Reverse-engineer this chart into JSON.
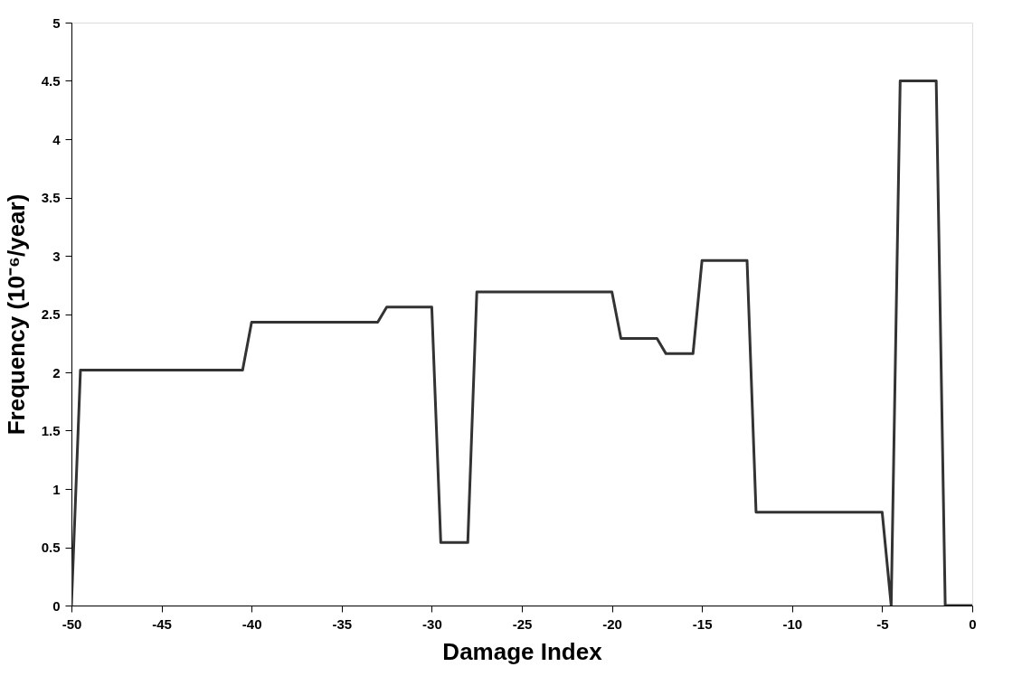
{
  "chart_data": {
    "type": "line",
    "xlabel": "Damage Index",
    "ylabel": "Frequency (10⁻⁶/year)",
    "x": [
      -50,
      -49.5,
      -40.5,
      -40,
      -33,
      -32.5,
      -30,
      -29.5,
      -28,
      -27.5,
      -20,
      -19.5,
      -17.5,
      -17,
      -15.5,
      -15,
      -12.5,
      -12,
      -5,
      -4.5,
      -4,
      -2,
      -1.5,
      0
    ],
    "series": [
      {
        "color": "#333333",
        "values": [
          0,
          2.02,
          2.02,
          2.43,
          2.43,
          2.56,
          2.56,
          0.54,
          0.54,
          2.69,
          2.69,
          2.29,
          2.29,
          2.16,
          2.16,
          2.96,
          2.96,
          0.8,
          0.8,
          0,
          4.5,
          4.5,
          0,
          0
        ]
      }
    ],
    "xlim": [
      -50,
      0
    ],
    "xticks": [
      -50,
      -45,
      -40,
      -35,
      -30,
      -25,
      -20,
      -15,
      -10,
      -5,
      0
    ],
    "ylim": [
      0,
      5
    ],
    "yticks": [
      0,
      0.5,
      1,
      1.5,
      2,
      2.5,
      3,
      3.5,
      4,
      4.5,
      5
    ],
    "grid": false,
    "legend": false,
    "marker": "none",
    "line_style": "solid"
  }
}
